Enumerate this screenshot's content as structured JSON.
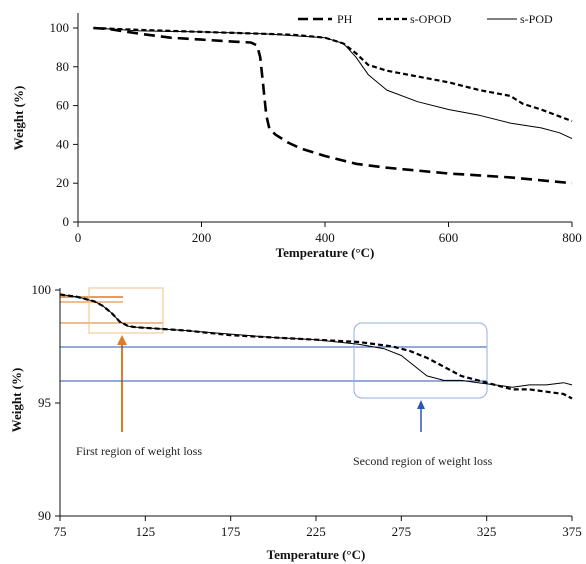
{
  "chart_data": [
    {
      "type": "line",
      "title": "",
      "xlabel": "Temperature (°C)",
      "ylabel": "Weight (%)",
      "xlim": [
        0,
        800
      ],
      "ylim": [
        0,
        100
      ],
      "xticks": [
        "0",
        "200",
        "400",
        "600",
        "800"
      ],
      "yticks": [
        "0",
        "20",
        "40",
        "60",
        "80",
        "100"
      ],
      "legend": "top-right",
      "series": [
        {
          "name": "PH",
          "style": "long-dash",
          "x": [
            25,
            50,
            100,
            150,
            200,
            250,
            280,
            290,
            295,
            300,
            305,
            310,
            320,
            340,
            360,
            400,
            450,
            500,
            550,
            600,
            650,
            700,
            750,
            800
          ],
          "y": [
            100,
            99.5,
            97,
            95,
            94,
            93,
            92.5,
            91,
            85,
            70,
            55,
            48,
            45,
            41,
            38,
            34,
            30,
            28,
            26.5,
            25,
            24,
            23,
            21.5,
            20
          ]
        },
        {
          "name": "s-OPOD",
          "style": "short-dash",
          "x": [
            25,
            100,
            200,
            300,
            350,
            400,
            430,
            450,
            470,
            500,
            550,
            600,
            650,
            700,
            720,
            750,
            800
          ],
          "y": [
            100,
            99,
            98,
            97,
            96.5,
            95,
            92,
            87,
            81,
            78,
            75,
            72,
            68,
            65,
            61,
            58,
            52
          ]
        },
        {
          "name": "s-POD",
          "style": "solid",
          "x": [
            25,
            100,
            200,
            300,
            350,
            400,
            430,
            450,
            470,
            500,
            550,
            600,
            650,
            700,
            750,
            780,
            800
          ],
          "y": [
            100,
            98.5,
            98,
            97,
            96,
            95,
            92,
            85,
            76,
            68,
            62,
            58,
            55,
            51,
            48.5,
            46,
            43
          ]
        }
      ]
    },
    {
      "type": "line",
      "title": "",
      "xlabel": "Temperature (°C)",
      "ylabel": "Weight (%)",
      "xlim": [
        75,
        375
      ],
      "ylim": [
        90,
        100
      ],
      "xticks": [
        "75",
        "125",
        "175",
        "225",
        "275",
        "325",
        "375"
      ],
      "yticks": [
        "90",
        "95",
        "100"
      ],
      "legend": "none",
      "series": [
        {
          "name": "s-OPOD",
          "style": "short-dash",
          "x": [
            75,
            85,
            95,
            100,
            105,
            110,
            115,
            120,
            130,
            150,
            175,
            200,
            225,
            250,
            270,
            280,
            290,
            300,
            310,
            320,
            330,
            340,
            350,
            360,
            370,
            375
          ],
          "y": [
            99.8,
            99.7,
            99.5,
            99.3,
            99.0,
            98.6,
            98.4,
            98.35,
            98.3,
            98.2,
            98.0,
            97.9,
            97.8,
            97.7,
            97.5,
            97.3,
            97.0,
            96.6,
            96.2,
            96.0,
            95.8,
            95.6,
            95.6,
            95.5,
            95.4,
            95.2
          ]
        },
        {
          "name": "s-POD",
          "style": "solid",
          "x": [
            75,
            85,
            95,
            100,
            105,
            110,
            115,
            120,
            130,
            150,
            175,
            200,
            225,
            250,
            265,
            275,
            285,
            290,
            300,
            310,
            320,
            330,
            340,
            350,
            360,
            370,
            375
          ],
          "y": [
            99.8,
            99.7,
            99.5,
            99.3,
            99.0,
            98.6,
            98.4,
            98.35,
            98.3,
            98.2,
            98.05,
            97.9,
            97.8,
            97.6,
            97.4,
            97.1,
            96.5,
            96.2,
            96.0,
            96.0,
            95.9,
            95.8,
            95.7,
            95.8,
            95.8,
            95.9,
            95.8
          ]
        }
      ],
      "annotations": {
        "first_region": "First region of weight loss",
        "second_region": "Second region of weight loss"
      }
    }
  ],
  "colors": {
    "axis": "#111111",
    "line": "#000000",
    "orange": "#e07a25",
    "orange_light": "#f0c080",
    "blue": "#2a55b8",
    "blue_light": "#8fb0e0"
  }
}
